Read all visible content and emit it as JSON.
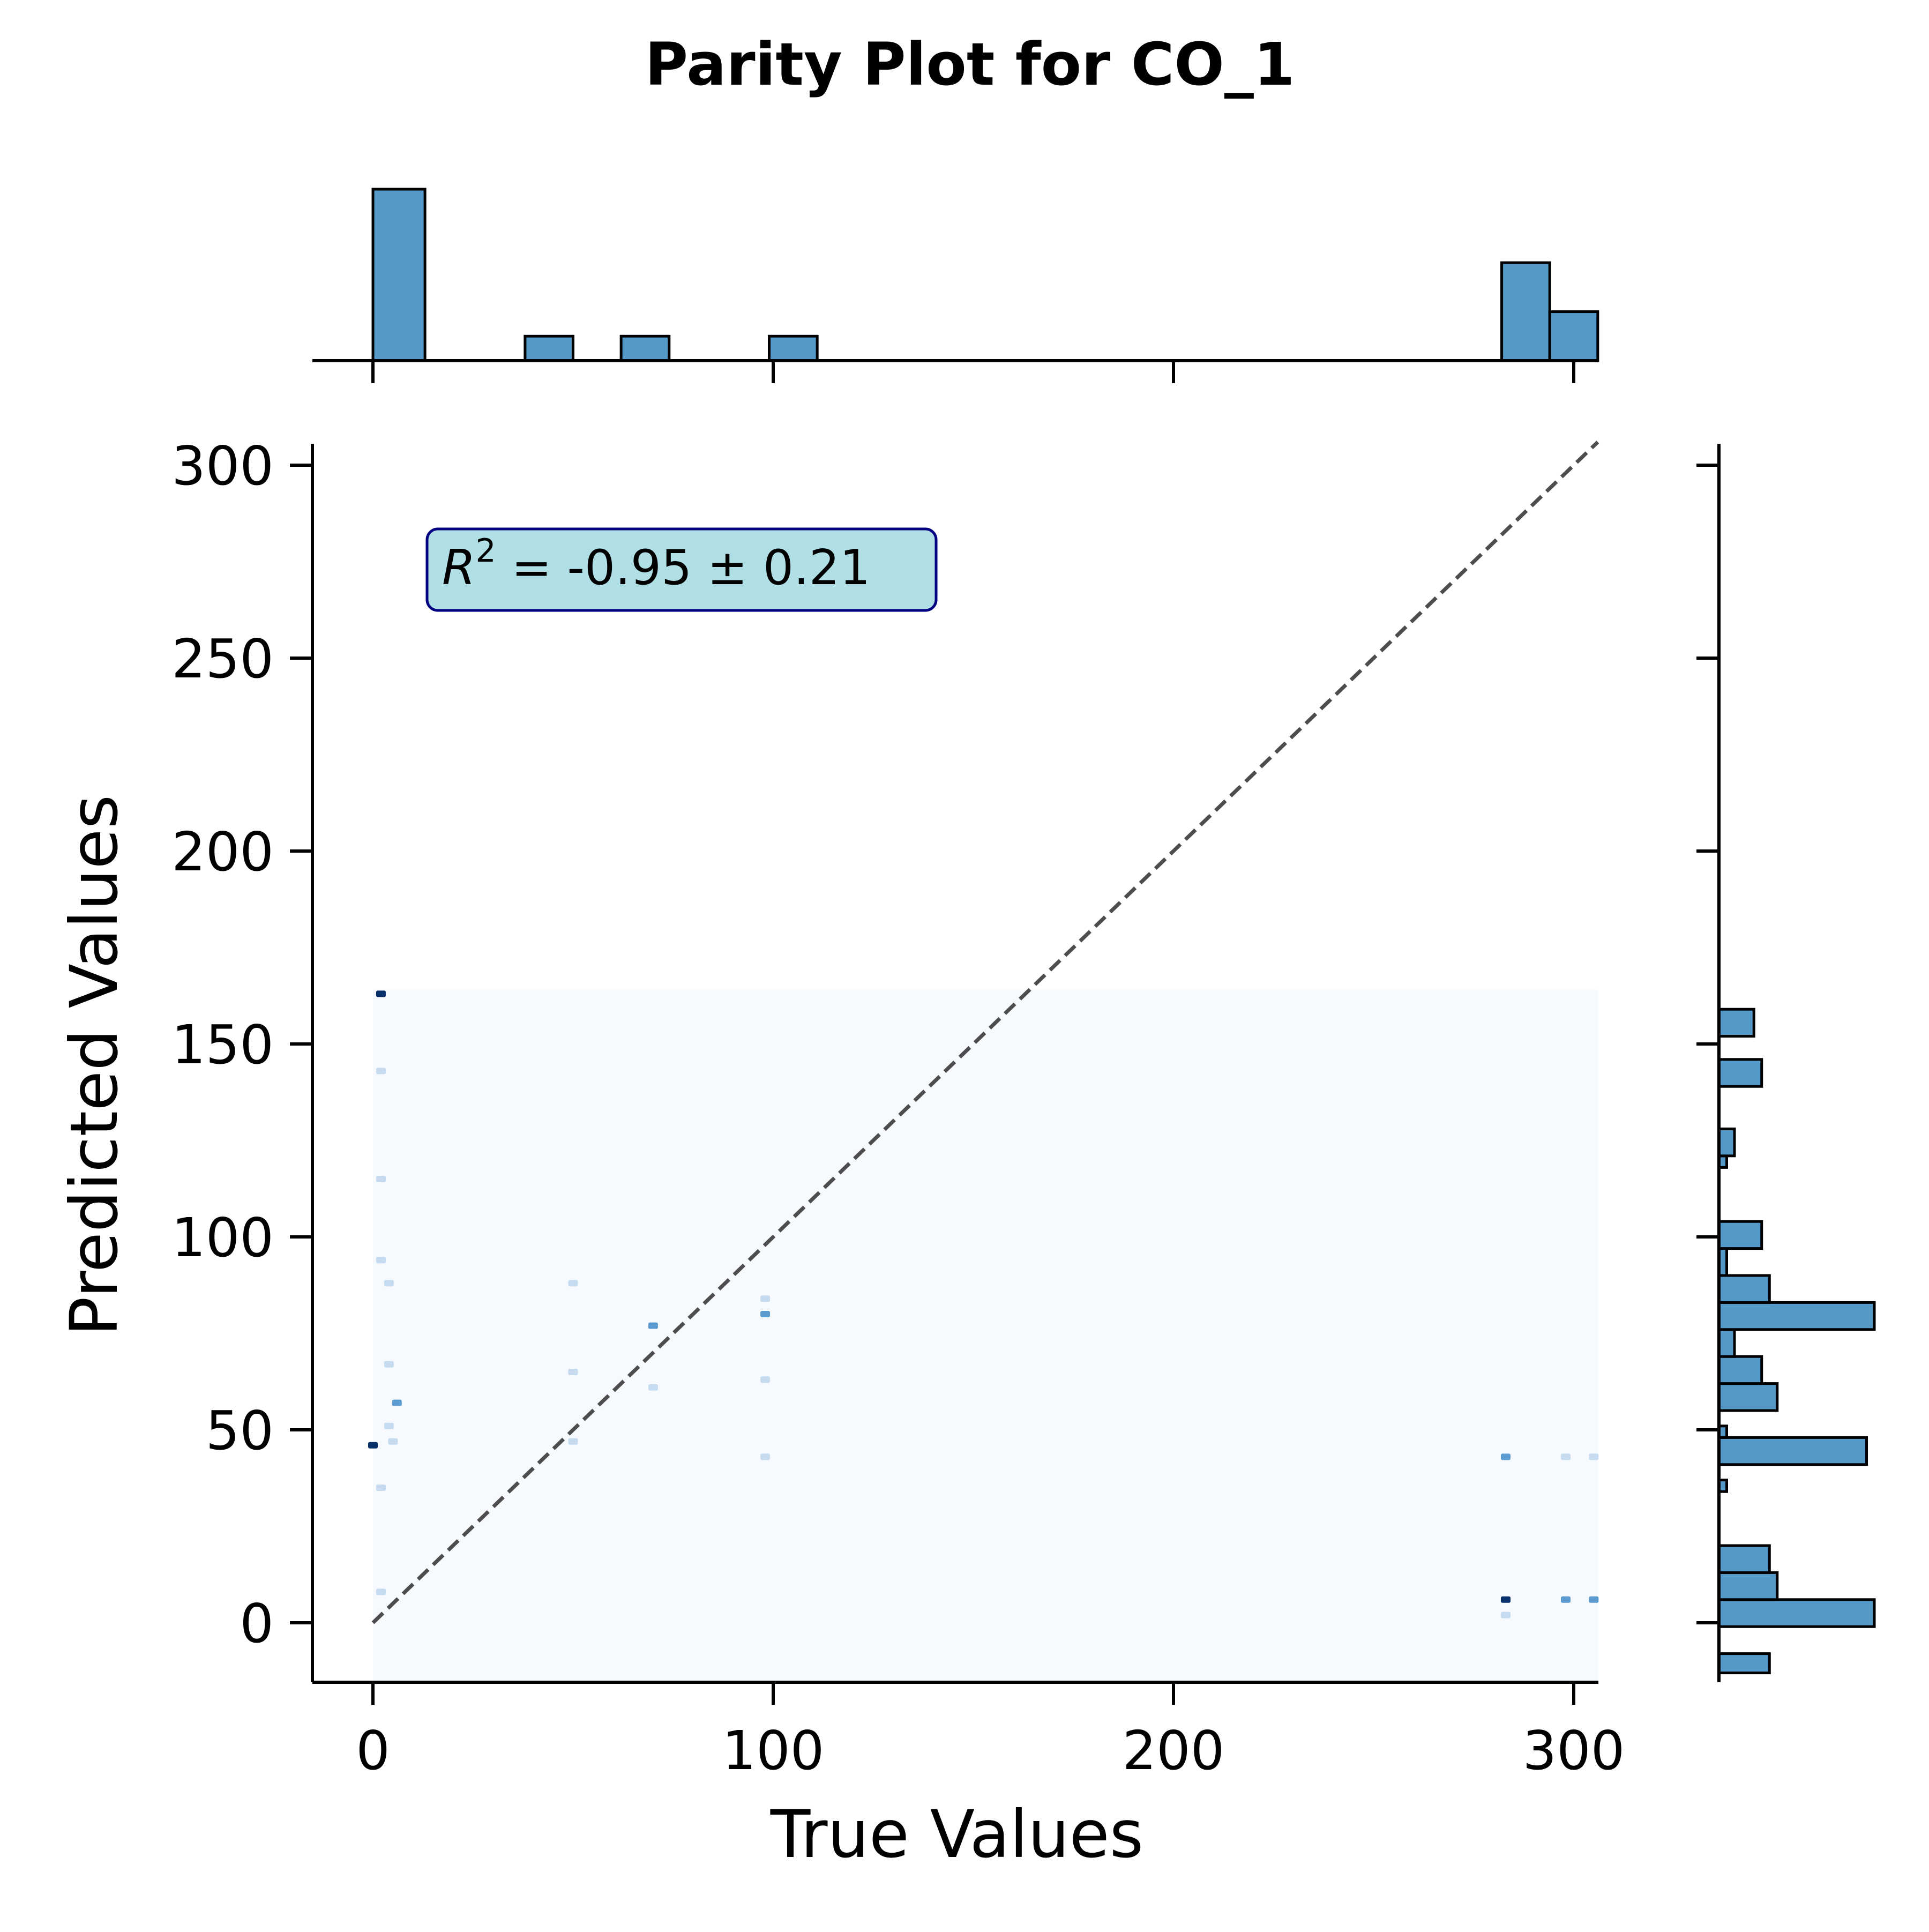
{
  "chart_data": {
    "type": "scatter",
    "title": "Parity Plot for CO_1",
    "xlabel": "True Values",
    "ylabel": "Predicted Values",
    "xlim": [
      -15,
      306
    ],
    "ylim": [
      -15,
      306
    ],
    "xticks": [
      0,
      100,
      200,
      300
    ],
    "yticks": [
      0,
      50,
      100,
      150,
      200,
      250,
      300
    ],
    "xtick_labels": [
      "0",
      "100",
      "200",
      "300"
    ],
    "ytick_labels": [
      "0",
      "50",
      "100",
      "150",
      "200",
      "250",
      "300"
    ],
    "annotation": {
      "label_base": "R",
      "label_sup": "2",
      "label_rest": " = -0.95 ± 0.21",
      "location": "top-left"
    },
    "parity_line": {
      "from": [
        0,
        0
      ],
      "to": [
        306,
        306
      ],
      "style": "dashed",
      "color": "#4d4d4d"
    },
    "density_background": {
      "x_range": [
        0,
        306
      ],
      "y_range": [
        -15,
        164
      ],
      "color": "#f6f9fd"
    },
    "points": [
      {
        "x": 2,
        "y": 163,
        "level": "dark"
      },
      {
        "x": 2,
        "y": 143,
        "level": "light"
      },
      {
        "x": 2,
        "y": 115,
        "level": "light"
      },
      {
        "x": 2,
        "y": 94,
        "level": "light"
      },
      {
        "x": 4,
        "y": 88,
        "level": "light"
      },
      {
        "x": 4,
        "y": 67,
        "level": "light"
      },
      {
        "x": 6,
        "y": 57,
        "level": "mid"
      },
      {
        "x": 4,
        "y": 51,
        "level": "light"
      },
      {
        "x": 0,
        "y": 46,
        "level": "dark"
      },
      {
        "x": 5,
        "y": 47,
        "level": "light"
      },
      {
        "x": 2,
        "y": 35,
        "level": "light"
      },
      {
        "x": 2,
        "y": 8,
        "level": "light"
      },
      {
        "x": 50,
        "y": 88,
        "level": "light"
      },
      {
        "x": 50,
        "y": 65,
        "level": "light"
      },
      {
        "x": 50,
        "y": 47,
        "level": "light"
      },
      {
        "x": 70,
        "y": 77,
        "level": "mid"
      },
      {
        "x": 70,
        "y": 61,
        "level": "light"
      },
      {
        "x": 98,
        "y": 84,
        "level": "light"
      },
      {
        "x": 98,
        "y": 80,
        "level": "mid"
      },
      {
        "x": 98,
        "y": 63,
        "level": "light"
      },
      {
        "x": 98,
        "y": 43,
        "level": "light"
      },
      {
        "x": 283,
        "y": 43,
        "level": "mid"
      },
      {
        "x": 298,
        "y": 43,
        "level": "light"
      },
      {
        "x": 305,
        "y": 43,
        "level": "light"
      },
      {
        "x": 283,
        "y": 6,
        "level": "dark"
      },
      {
        "x": 298,
        "y": 6,
        "level": "mid"
      },
      {
        "x": 305,
        "y": 6,
        "level": "mid"
      },
      {
        "x": 283,
        "y": 2,
        "level": "light"
      }
    ],
    "density_colors": {
      "light": "#c6dbef",
      "mid": "#5b9bd0",
      "dark": "#08306b"
    },
    "marginal_x": {
      "type": "histogram",
      "bin_width": 12,
      "max_count": 7,
      "bars": [
        {
          "x0": 0,
          "x1": 13,
          "count": 7
        },
        {
          "x0": 38,
          "x1": 50,
          "count": 1
        },
        {
          "x0": 62,
          "x1": 74,
          "count": 1
        },
        {
          "x0": 99,
          "x1": 111,
          "count": 1
        },
        {
          "x0": 282,
          "x1": 294,
          "count": 4
        },
        {
          "x0": 294,
          "x1": 306,
          "count": 2
        }
      ],
      "color": "#5499c7"
    },
    "marginal_y": {
      "type": "histogram",
      "max_count": 4,
      "bars": [
        {
          "y0": -13,
          "y1": -8,
          "count": 1.3
        },
        {
          "y0": -1,
          "y1": 6,
          "count": 4
        },
        {
          "y0": 6,
          "y1": 13,
          "count": 1.5
        },
        {
          "y0": 13,
          "y1": 20,
          "count": 1.3
        },
        {
          "y0": 34,
          "y1": 37,
          "count": 0.2
        },
        {
          "y0": 41,
          "y1": 48,
          "count": 3.8
        },
        {
          "y0": 48,
          "y1": 51,
          "count": 0.2
        },
        {
          "y0": 55,
          "y1": 62,
          "count": 1.5
        },
        {
          "y0": 62,
          "y1": 69,
          "count": 1.1
        },
        {
          "y0": 69,
          "y1": 76,
          "count": 0.4
        },
        {
          "y0": 76,
          "y1": 83,
          "count": 4
        },
        {
          "y0": 83,
          "y1": 90,
          "count": 1.3
        },
        {
          "y0": 90,
          "y1": 97,
          "count": 0.2
        },
        {
          "y0": 97,
          "y1": 104,
          "count": 1.1
        },
        {
          "y0": 118,
          "y1": 121,
          "count": 0.2
        },
        {
          "y0": 121,
          "y1": 128,
          "count": 0.4
        },
        {
          "y0": 139,
          "y1": 146,
          "count": 1.1
        },
        {
          "y0": 152,
          "y1": 159,
          "count": 0.9
        }
      ],
      "color": "#5499c7"
    }
  }
}
